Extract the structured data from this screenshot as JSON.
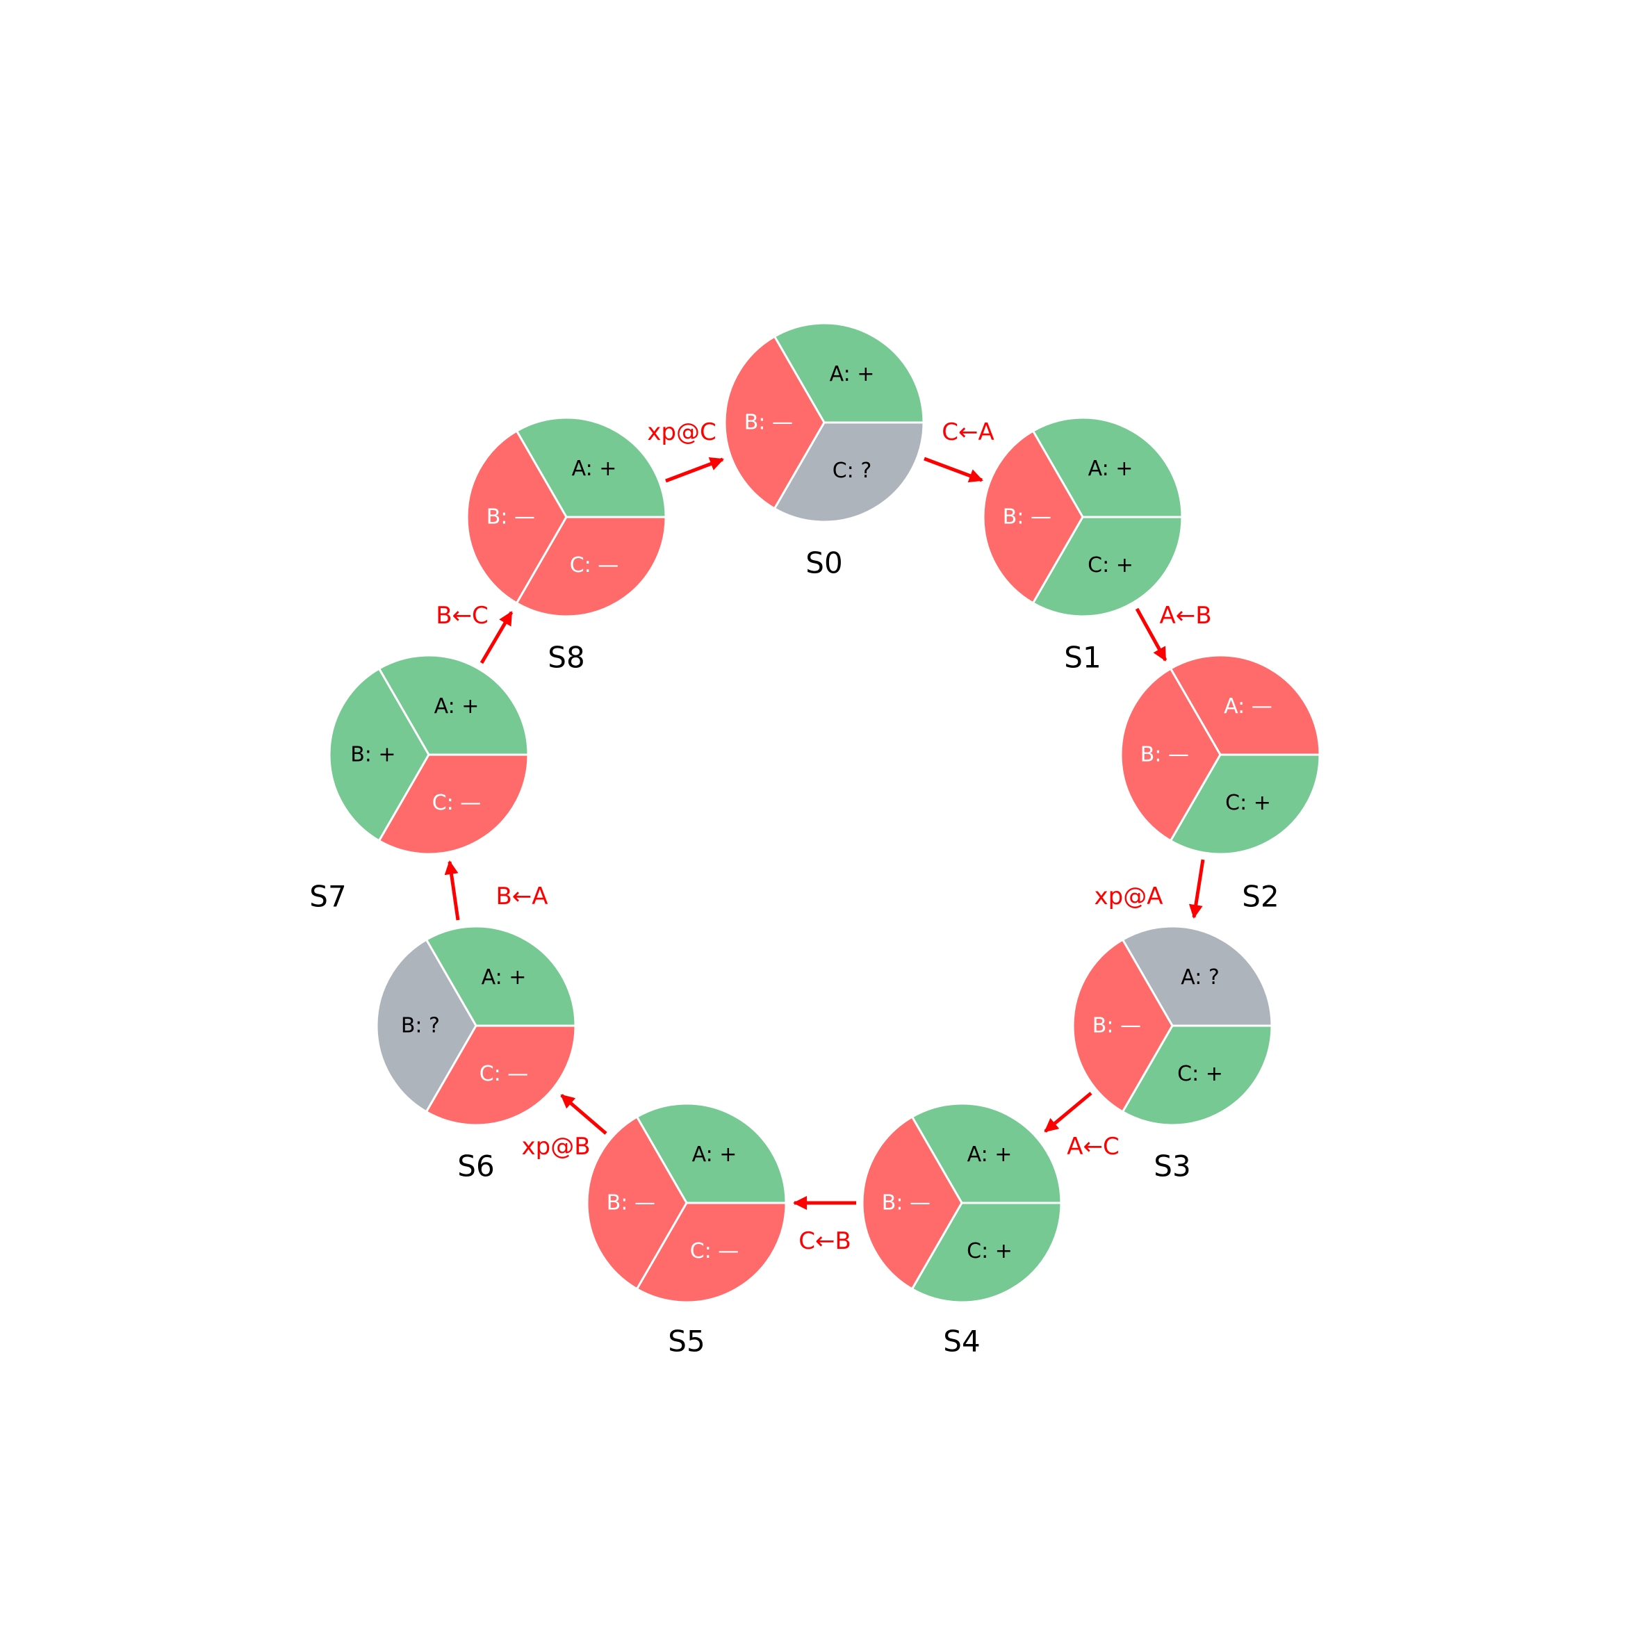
{
  "colors": {
    "positive": "#77c994",
    "negative": "#ff6b6b",
    "unknown": "#aeb4bb",
    "arrow": "#ff0000",
    "text_dark": "#000000",
    "text_light": "#ffffff",
    "divider": "#ffffff"
  },
  "states": [
    {
      "name": "S0",
      "segments": [
        {
          "label": "A: +",
          "status": "positive"
        },
        {
          "label": "B: —",
          "status": "negative"
        },
        {
          "label": "C: ?",
          "status": "unknown"
        }
      ]
    },
    {
      "name": "S1",
      "segments": [
        {
          "label": "A: +",
          "status": "positive"
        },
        {
          "label": "B: —",
          "status": "negative"
        },
        {
          "label": "C: +",
          "status": "positive"
        }
      ]
    },
    {
      "name": "S2",
      "segments": [
        {
          "label": "A: —",
          "status": "negative"
        },
        {
          "label": "B: —",
          "status": "negative"
        },
        {
          "label": "C: +",
          "status": "positive"
        }
      ]
    },
    {
      "name": "S3",
      "segments": [
        {
          "label": "A: ?",
          "status": "unknown"
        },
        {
          "label": "B: —",
          "status": "negative"
        },
        {
          "label": "C: +",
          "status": "positive"
        }
      ]
    },
    {
      "name": "S4",
      "segments": [
        {
          "label": "A: +",
          "status": "positive"
        },
        {
          "label": "B: —",
          "status": "negative"
        },
        {
          "label": "C: +",
          "status": "positive"
        }
      ]
    },
    {
      "name": "S5",
      "segments": [
        {
          "label": "A: +",
          "status": "positive"
        },
        {
          "label": "B: —",
          "status": "negative"
        },
        {
          "label": "C: —",
          "status": "negative"
        }
      ]
    },
    {
      "name": "S6",
      "segments": [
        {
          "label": "A: +",
          "status": "positive"
        },
        {
          "label": "B: ?",
          "status": "unknown"
        },
        {
          "label": "C: —",
          "status": "negative"
        }
      ]
    },
    {
      "name": "S7",
      "segments": [
        {
          "label": "A: +",
          "status": "positive"
        },
        {
          "label": "B: +",
          "status": "positive"
        },
        {
          "label": "C: —",
          "status": "negative"
        }
      ]
    },
    {
      "name": "S8",
      "segments": [
        {
          "label": "A: +",
          "status": "positive"
        },
        {
          "label": "B: —",
          "status": "negative"
        },
        {
          "label": "C: —",
          "status": "negative"
        }
      ]
    }
  ],
  "transitions": [
    {
      "from": "S0",
      "to": "S1",
      "label": "C←A"
    },
    {
      "from": "S1",
      "to": "S2",
      "label": "A←B"
    },
    {
      "from": "S2",
      "to": "S3",
      "label": "xp@A"
    },
    {
      "from": "S3",
      "to": "S4",
      "label": "A←C"
    },
    {
      "from": "S4",
      "to": "S5",
      "label": "C←B"
    },
    {
      "from": "S5",
      "to": "S6",
      "label": "xp@B"
    },
    {
      "from": "S6",
      "to": "S7",
      "label": "B←A"
    },
    {
      "from": "S7",
      "to": "S8",
      "label": "B←C"
    },
    {
      "from": "S8",
      "to": "S0",
      "label": "xp@C"
    }
  ]
}
